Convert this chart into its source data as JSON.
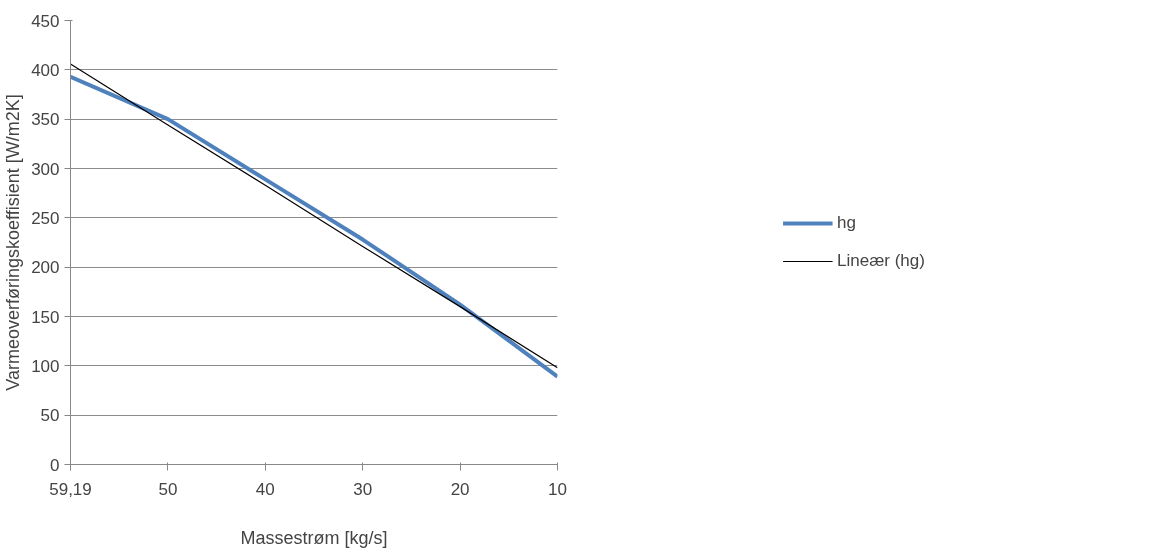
{
  "chart_data": {
    "type": "line",
    "xlabel": "Massestrøm [kg/s]",
    "ylabel": "Varmeoverføringskoeffisient [W/m2K]",
    "categories": [
      "59,19",
      "50",
      "40",
      "30",
      "20",
      "10"
    ],
    "series": [
      {
        "name": "hg",
        "color": "#4f81bd",
        "values": [
          393,
          350,
          289,
          228,
          162,
          89
        ]
      },
      {
        "name": "Lineær (hg)",
        "color": "#000000",
        "values": [
          406,
          344,
          283,
          221,
          160,
          98
        ]
      }
    ],
    "ylim": [
      0,
      450
    ],
    "yticks": [
      0,
      50,
      100,
      150,
      200,
      250,
      300,
      350,
      400,
      450
    ],
    "grid": "y",
    "legend": "right",
    "marker": "none",
    "line_style": "solid"
  }
}
